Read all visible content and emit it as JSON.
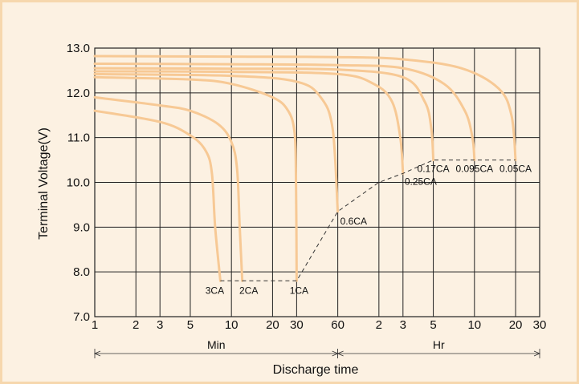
{
  "chart_data": {
    "type": "line",
    "title": "",
    "xlabel": "Discharge time",
    "ylabel": "Terminal Voltage(V)",
    "x_unit_note": "x values are discharge time in minutes on a logarithmic axis (1 min to 30 Hr)",
    "ylim": [
      7.0,
      13.0
    ],
    "yticks": [
      "7.0",
      "8.0",
      "9.0",
      "10.0",
      "11.0",
      "12.0",
      "13.0"
    ],
    "xticks": [
      {
        "label": "1",
        "min": 1
      },
      {
        "label": "2",
        "min": 2
      },
      {
        "label": "3",
        "min": 3
      },
      {
        "label": "5",
        "min": 5
      },
      {
        "label": "10",
        "min": 10
      },
      {
        "label": "20",
        "min": 20
      },
      {
        "label": "30",
        "min": 30
      },
      {
        "label": "60",
        "min": 60
      },
      {
        "label": "2",
        "min": 120
      },
      {
        "label": "3",
        "min": 180
      },
      {
        "label": "5",
        "min": 300
      },
      {
        "label": "10",
        "min": 600
      },
      {
        "label": "20",
        "min": 1200
      },
      {
        "label": "30",
        "min": 1800
      }
    ],
    "x_groups": [
      {
        "label": "Min",
        "from": 1,
        "to": 60
      },
      {
        "label": "Hr",
        "from": 60,
        "to": 1800
      }
    ],
    "grid": true,
    "series": [
      {
        "name": "3CA",
        "points": [
          [
            1,
            11.6
          ],
          [
            3,
            11.35
          ],
          [
            5,
            11.05
          ],
          [
            6.5,
            10.7
          ],
          [
            7.2,
            10.2
          ],
          [
            7.6,
            9.0
          ],
          [
            8.3,
            7.8
          ]
        ]
      },
      {
        "name": "2CA",
        "points": [
          [
            1,
            11.9
          ],
          [
            3,
            11.72
          ],
          [
            5,
            11.6
          ],
          [
            8,
            11.3
          ],
          [
            10,
            10.9
          ],
          [
            11,
            10.3
          ],
          [
            11.5,
            9.0
          ],
          [
            12,
            7.8
          ]
        ]
      },
      {
        "name": "1CA",
        "points": [
          [
            1,
            12.35
          ],
          [
            5,
            12.3
          ],
          [
            10,
            12.2
          ],
          [
            20,
            11.9
          ],
          [
            26,
            11.6
          ],
          [
            29,
            11.1
          ],
          [
            29.7,
            10.0
          ],
          [
            30,
            7.8
          ]
        ]
      },
      {
        "name": "0.6CA",
        "points": [
          [
            1,
            12.42
          ],
          [
            10,
            12.38
          ],
          [
            30,
            12.25
          ],
          [
            45,
            11.9
          ],
          [
            55,
            11.2
          ],
          [
            60,
            9.35
          ]
        ]
      },
      {
        "name": "0.25CA",
        "points": [
          [
            1,
            12.48
          ],
          [
            10,
            12.47
          ],
          [
            60,
            12.42
          ],
          [
            110,
            12.2
          ],
          [
            150,
            11.8
          ],
          [
            172,
            11.0
          ],
          [
            180,
            10.2
          ]
        ]
      },
      {
        "name": "0.17CA",
        "points": [
          [
            1,
            12.55
          ],
          [
            10,
            12.54
          ],
          [
            60,
            12.52
          ],
          [
            180,
            12.35
          ],
          [
            260,
            11.8
          ],
          [
            290,
            11.2
          ],
          [
            300,
            10.5
          ]
        ]
      },
      {
        "name": "0.095CA",
        "points": [
          [
            1,
            12.65
          ],
          [
            10,
            12.64
          ],
          [
            60,
            12.62
          ],
          [
            180,
            12.55
          ],
          [
            360,
            12.2
          ],
          [
            510,
            11.6
          ],
          [
            580,
            11.0
          ],
          [
            600,
            10.5
          ]
        ]
      },
      {
        "name": "0.05CA",
        "points": [
          [
            1,
            12.82
          ],
          [
            10,
            12.81
          ],
          [
            60,
            12.8
          ],
          [
            180,
            12.75
          ],
          [
            480,
            12.55
          ],
          [
            900,
            12.1
          ],
          [
            1120,
            11.5
          ],
          [
            1200,
            10.5
          ]
        ]
      }
    ],
    "cutoff_line": [
      [
        8.3,
        7.8
      ],
      [
        30,
        7.8
      ],
      [
        60,
        9.35
      ],
      [
        120,
        10.0
      ],
      [
        180,
        10.2
      ],
      [
        300,
        10.5
      ],
      [
        1200,
        10.5
      ]
    ],
    "curve_color": "#f7c995",
    "cutoff_color": "#333333"
  }
}
